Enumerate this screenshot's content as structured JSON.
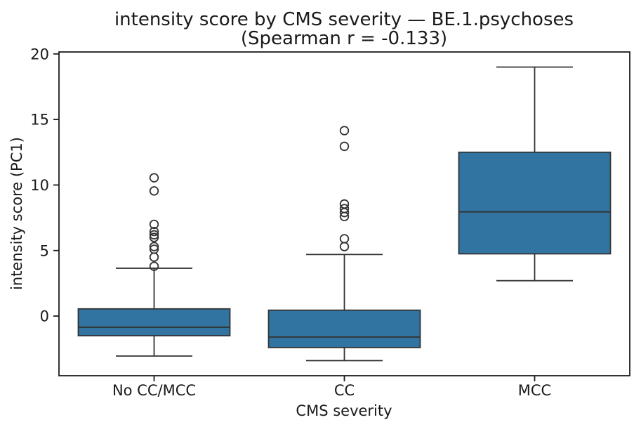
{
  "chart_data": {
    "type": "boxplot",
    "title_line1": "intensity score by CMS severity — BE.1.psychoses",
    "title_line2": "(Spearman r = -0.133)",
    "xlabel": "CMS severity",
    "ylabel": "intensity score (PC1)",
    "categories": [
      "No CC/MCC",
      "CC",
      "MCC"
    ],
    "yticks": [
      0,
      5,
      10,
      15,
      20
    ],
    "ylim": [
      -4.55,
      20.15
    ],
    "grid": false,
    "legend": "none",
    "box_fill": "#3274a1",
    "box_line_color": "#333333",
    "spine_color": "#1c1c1c",
    "series": [
      {
        "category": "No CC/MCC",
        "whisker_low": -3.05,
        "q1": -1.5,
        "median": -0.85,
        "q3": 0.55,
        "whisker_high": 3.65,
        "outliers": [
          10.55,
          9.55,
          7.0,
          6.45,
          6.2,
          6.0,
          5.3,
          5.1,
          4.5,
          3.8
        ]
      },
      {
        "category": "CC",
        "whisker_low": -3.4,
        "q1": -2.4,
        "median": -1.6,
        "q3": 0.45,
        "whisker_high": 4.7,
        "outliers": [
          14.15,
          12.95,
          8.55,
          8.2,
          7.9,
          7.6,
          5.9,
          5.3
        ]
      },
      {
        "category": "MCC",
        "whisker_low": 2.7,
        "q1": 4.75,
        "median": 7.95,
        "q3": 12.5,
        "whisker_high": 19.0,
        "outliers": []
      }
    ]
  }
}
